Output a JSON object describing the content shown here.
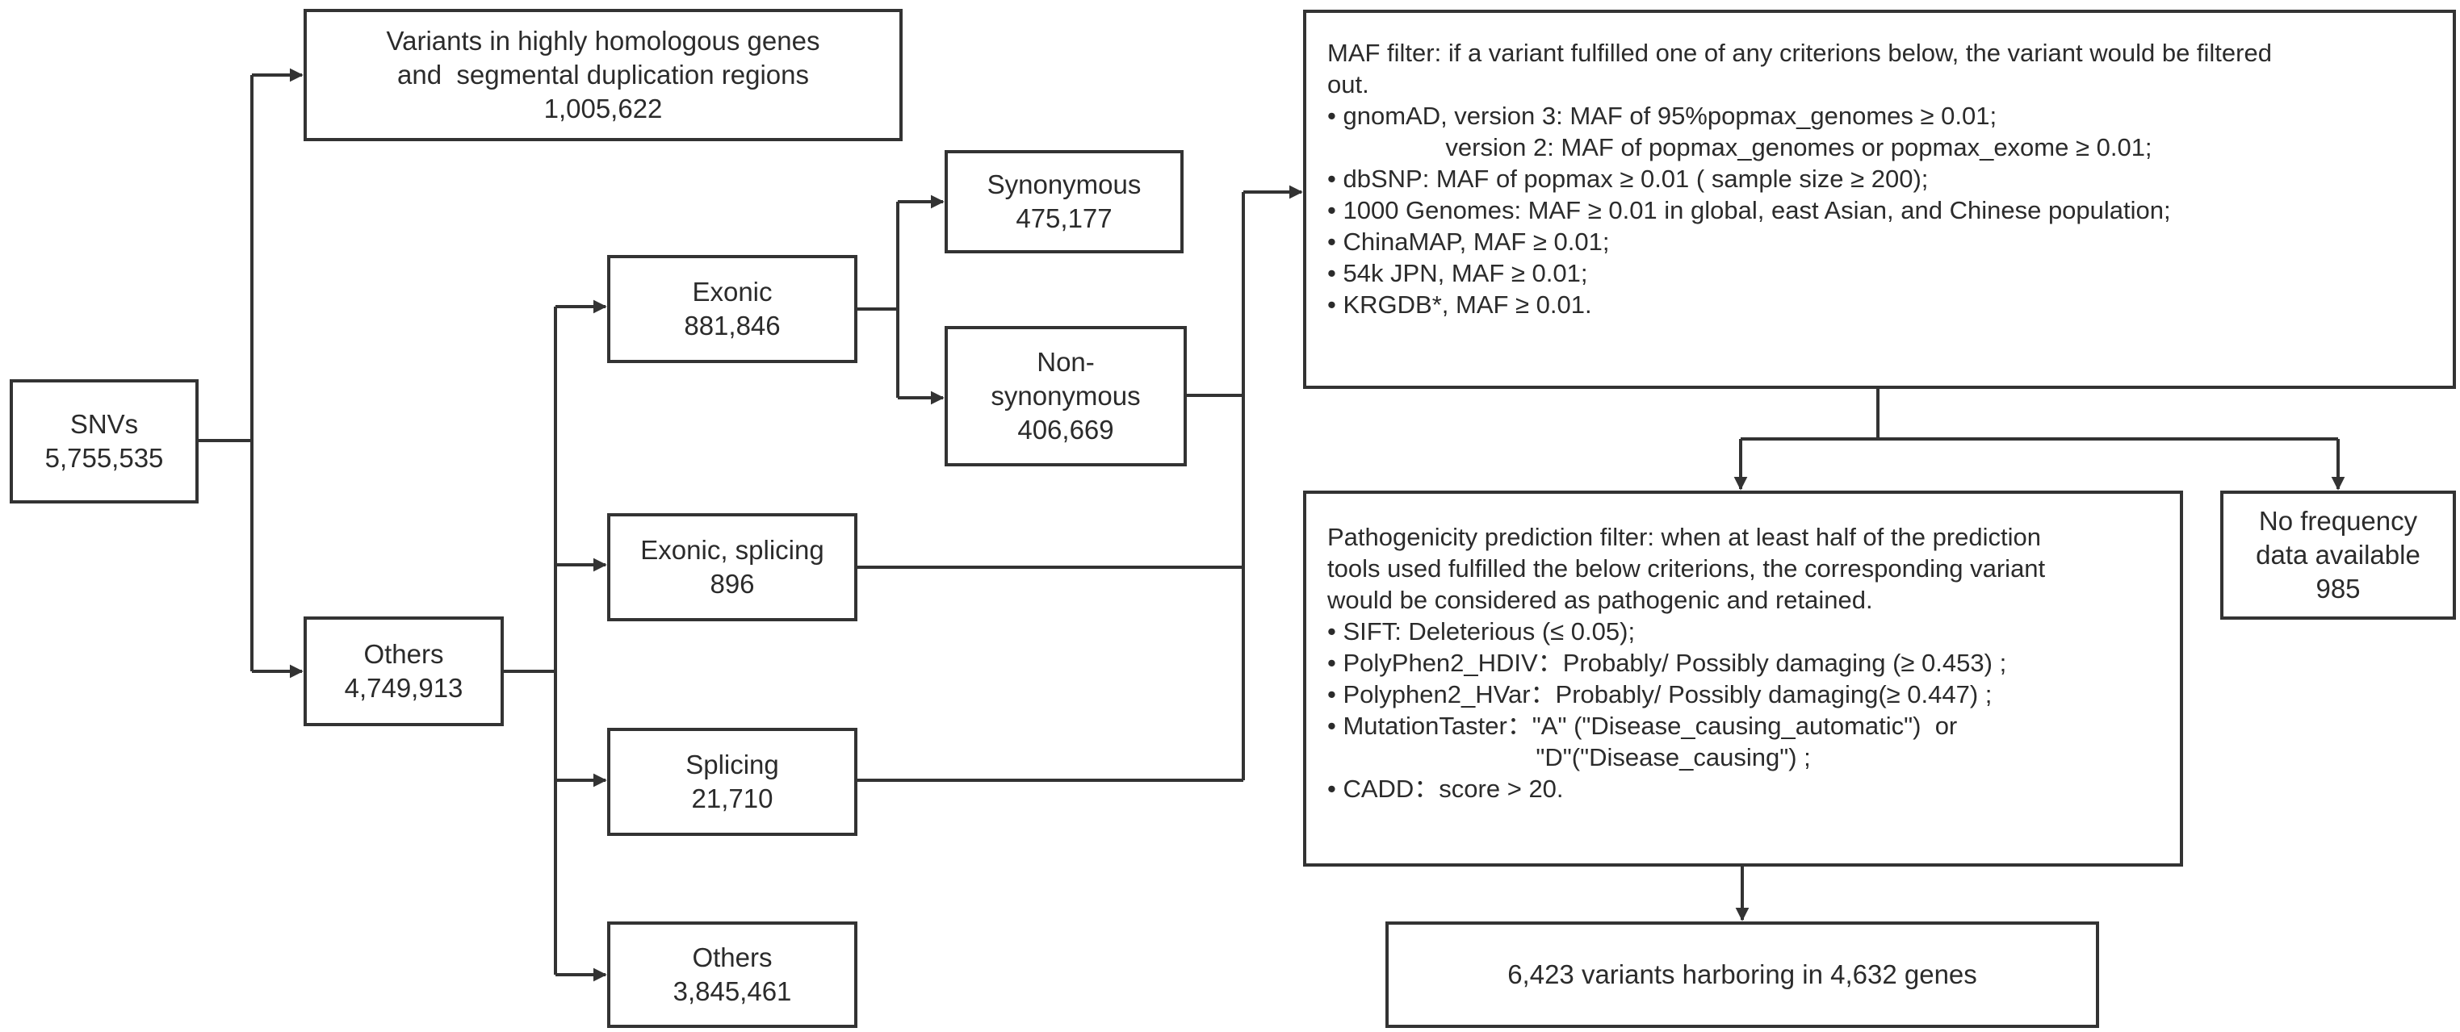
{
  "snvs": {
    "label": "SNVs",
    "count": "5,755,535"
  },
  "homologous": {
    "line1": "Variants in highly homologous genes",
    "line2": "and  segmental duplication regions",
    "count": "1,005,622"
  },
  "others_top": {
    "label": "Others",
    "count": "4,749,913"
  },
  "exonic": {
    "label": "Exonic",
    "count": "881,846"
  },
  "synonymous": {
    "label": "Synonymous",
    "count": "475,177"
  },
  "nonsynonymous": {
    "line1": "Non-",
    "line2": "synonymous",
    "count": "406,669"
  },
  "exonic_splicing": {
    "label": "Exonic, splicing",
    "count": "896"
  },
  "splicing": {
    "label": "Splicing",
    "count": "21,710"
  },
  "others_bottom": {
    "label": "Others",
    "count": "3,845,461"
  },
  "maf_filter": {
    "lines": [
      "MAF filter: if a variant fulfilled one of any criterions below, the variant would be filtered",
      "out.",
      "• gnomAD, version 3: MAF of 95%popmax_genomes ≥ 0.01;",
      "                 version 2: MAF of popmax_genomes or popmax_exome ≥ 0.01;",
      "• dbSNP: MAF of popmax ≥ 0.01 ( sample size ≥ 200);",
      "• 1000 Genomes: MAF ≥ 0.01 in global, east Asian, and Chinese population;",
      "• ChinaMAP, MAF ≥ 0.01;",
      "• 54k JPN, MAF ≥ 0.01;",
      "• KRGDB*, MAF ≥ 0.01."
    ]
  },
  "pathogenicity_filter": {
    "lines": [
      "Pathogenicity prediction filter: when at least half of the prediction",
      "tools used fulfilled the below criterions, the corresponding variant",
      "would be considered as pathogenic and retained.",
      "• SIFT: Deleterious (≤ 0.05);",
      "• PolyPhen2_HDIV：Probably/ Possibly damaging (≥ 0.453) ;",
      "• Polyphen2_HVar：Probably/ Possibly damaging(≥ 0.447) ;",
      "• MutationTaster：\"A\" (\"Disease_causing_automatic\")  or",
      "                              \"D\"(\"Disease_causing\") ;",
      "• CADD：score > 20."
    ]
  },
  "no_frequency": {
    "line1": "No frequency",
    "line2": "data available",
    "count": "985"
  },
  "final": {
    "label": "6,423 variants harboring in 4,632 genes"
  }
}
